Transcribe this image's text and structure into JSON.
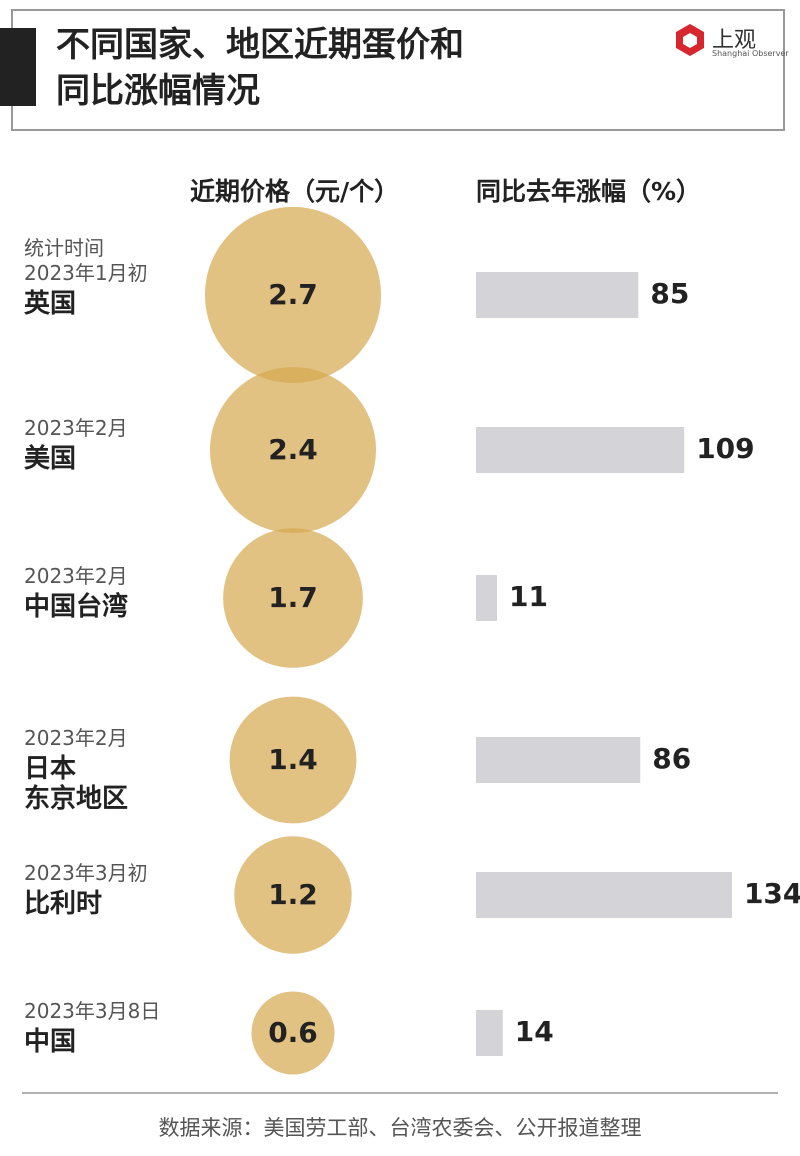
{
  "header": {
    "title_lines": [
      "不同国家、地区近期蛋价和",
      "同比涨幅情况"
    ],
    "logo_name": "上观",
    "logo_sub": "Shanghai Observer"
  },
  "chart_data": {
    "type": "bubble_bar",
    "price_header": "近期价格（元/个）",
    "growth_header": "同比去年涨幅（%）",
    "date_note": "统计时间",
    "dates": [
      "2023年1月初",
      "2023年2月",
      "2023年2月",
      "2023年2月",
      "2023年3月初",
      "2023年3月8日"
    ],
    "categories": [
      "英国",
      "美国",
      "中国台湾",
      "日本\n东京地区",
      "比利时",
      "中国"
    ],
    "series": [
      {
        "name": "近期价格",
        "color": "#d6a84e",
        "values": [
          2.7,
          2.4,
          1.7,
          1.4,
          1.2,
          0.6
        ]
      },
      {
        "name": "同比去年涨幅",
        "color": "#d4d4d8",
        "values": [
          85,
          109,
          11,
          86,
          134,
          14
        ]
      }
    ]
  },
  "footer": {
    "source": "数据来源：美国劳工部、台湾农委会、公开报道整理"
  }
}
